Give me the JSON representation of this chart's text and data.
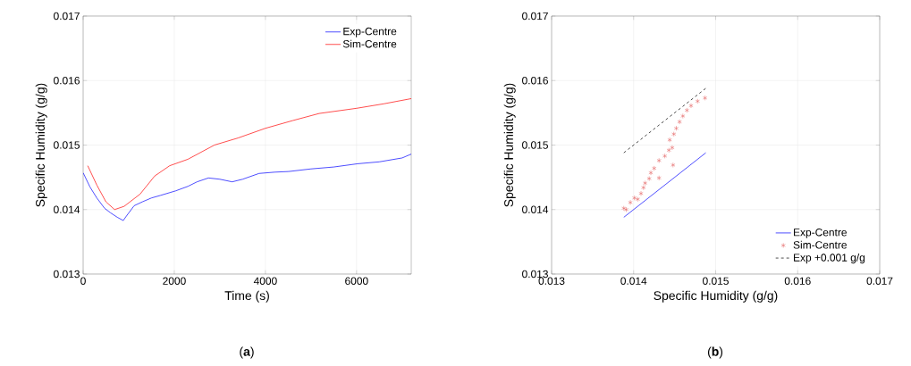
{
  "chart_data": [
    {
      "type": "line",
      "xlabel": "Time (s)",
      "ylabel": "Specific Humidity (g/g)",
      "xlim": [
        0,
        7200
      ],
      "ylim": [
        0.013,
        0.017
      ],
      "xticks": [
        0,
        2000,
        4000,
        6000
      ],
      "yticks": [
        0.013,
        0.014,
        0.015,
        0.016,
        0.017
      ],
      "grid": true,
      "legend": "top right",
      "annotations": [
        "(**a**)"
      ],
      "series": [
        {
          "name": "Exp-Centre",
          "color": "#0000ff",
          "x": [
            0,
            150,
            300,
            470,
            600,
            750,
            880,
            950,
            1120,
            1300,
            1500,
            1700,
            2030,
            2300,
            2500,
            2750,
            3000,
            3270,
            3500,
            3860,
            4200,
            4510,
            5000,
            5500,
            6020,
            6500,
            7000,
            7200
          ],
          "values": [
            0.01457,
            0.01435,
            0.01418,
            0.01402,
            0.01395,
            0.01388,
            0.01383,
            0.0139,
            0.01406,
            0.01412,
            0.01418,
            0.01422,
            0.01429,
            0.01436,
            0.01443,
            0.01449,
            0.01447,
            0.01443,
            0.01447,
            0.01456,
            0.01458,
            0.01459,
            0.01463,
            0.01466,
            0.01471,
            0.01474,
            0.0148,
            0.01486
          ]
        },
        {
          "name": "Sim-Centre",
          "color": "#ff0000",
          "x": [
            100,
            300,
            500,
            690,
            900,
            1250,
            1570,
            1900,
            2300,
            2880,
            3400,
            4000,
            4600,
            5180,
            6000,
            6600,
            7200
          ],
          "values": [
            0.01468,
            0.01438,
            0.01412,
            0.014,
            0.01405,
            0.01424,
            0.01452,
            0.01468,
            0.01478,
            0.015,
            0.01511,
            0.01526,
            0.01538,
            0.01549,
            0.01557,
            0.01564,
            0.01572
          ]
        }
      ]
    },
    {
      "type": "scatter",
      "xlabel": "Specific Humidity (g/g)",
      "ylabel": "Specific Humidity (g/g)",
      "xlim": [
        0.013,
        0.017
      ],
      "ylim": [
        0.013,
        0.017
      ],
      "xticks": [
        0.013,
        0.014,
        0.015,
        0.016,
        0.017
      ],
      "yticks": [
        0.013,
        0.014,
        0.015,
        0.016,
        0.017
      ],
      "grid": true,
      "legend": "bottom right",
      "annotations": [
        "(**b**)"
      ],
      "series": [
        {
          "name": "Exp-Centre",
          "type": "line",
          "color": "#0000ff",
          "x": [
            0.01388,
            0.01488
          ],
          "values": [
            0.01388,
            0.01488
          ]
        },
        {
          "name": "Sim-Centre",
          "type": "scatter",
          "marker": "cross",
          "color": "#e35a5a",
          "x": [
            0.01388,
            0.01391,
            0.01396,
            0.01401,
            0.01405,
            0.01409,
            0.01412,
            0.01414,
            0.01419,
            0.01421,
            0.01425,
            0.01431,
            0.01431,
            0.01438,
            0.01443,
            0.01447,
            0.01448,
            0.01444,
            0.01449,
            0.01452,
            0.01456,
            0.0146,
            0.01465,
            0.0147,
            0.01478,
            0.01487
          ],
          "values": [
            0.01402,
            0.014,
            0.01411,
            0.01418,
            0.01416,
            0.01425,
            0.01434,
            0.01441,
            0.01448,
            0.01457,
            0.01464,
            0.01449,
            0.01476,
            0.01483,
            0.01492,
            0.01496,
            0.01469,
            0.01508,
            0.01517,
            0.01526,
            0.01536,
            0.01545,
            0.01554,
            0.01561,
            0.01568,
            0.01573
          ]
        },
        {
          "name": "Exp +0.001 g/g",
          "type": "line",
          "line_style": "dashed",
          "color": "#000000",
          "x": [
            0.01388,
            0.01488
          ],
          "values": [
            0.01488,
            0.01588
          ]
        }
      ]
    }
  ]
}
